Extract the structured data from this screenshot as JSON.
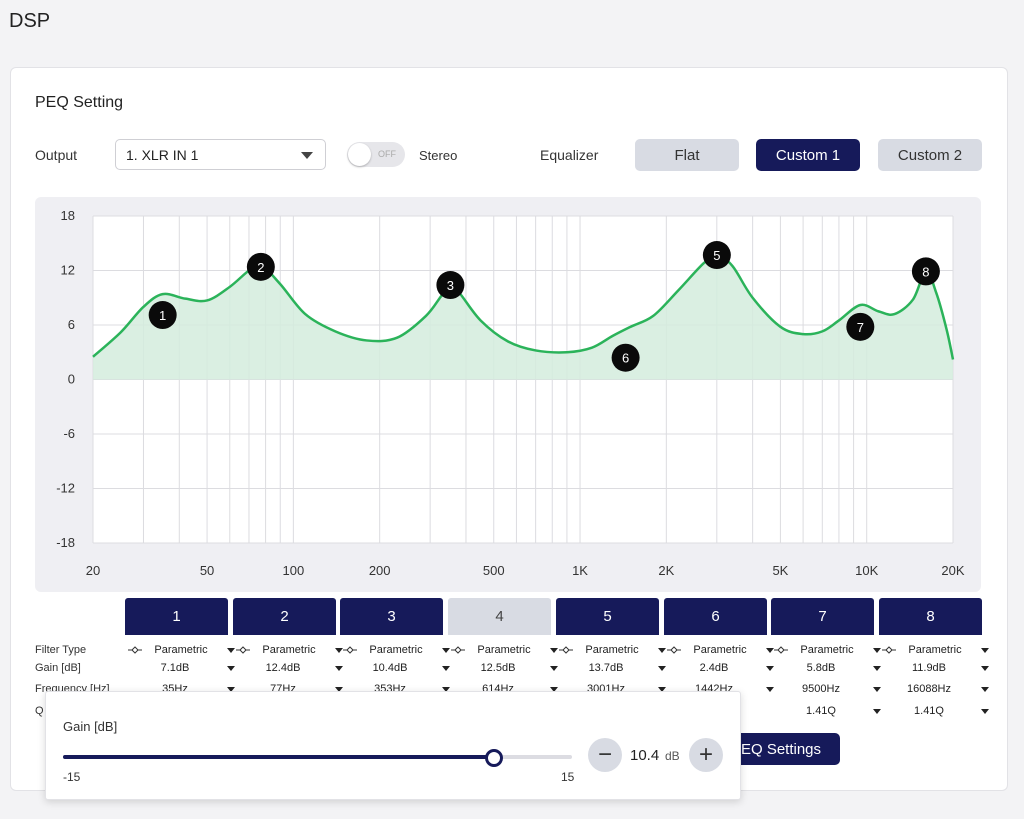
{
  "app_title": "DSP",
  "section_title": "PEQ Setting",
  "output": {
    "label": "Output",
    "value": "1. XLR IN 1"
  },
  "stereo": {
    "state_text": "OFF",
    "label": "Stereo"
  },
  "equalizer": {
    "label": "Equalizer",
    "presets": [
      {
        "label": "Flat",
        "active": false
      },
      {
        "label": "Custom 1",
        "active": true
      },
      {
        "label": "Custom 2",
        "active": false
      }
    ]
  },
  "colors": {
    "accent": "#161a5a",
    "curve": "#2bb35a",
    "curve_fill": "#d4ecdd",
    "marker": "#0a0a0a"
  },
  "chart_data": {
    "type": "line",
    "title": "",
    "xscale": "log",
    "xlim": [
      20,
      20000
    ],
    "ylim": [
      -18,
      18
    ],
    "y_ticks": [
      18,
      12,
      6,
      0,
      -6,
      -12,
      -18
    ],
    "x_ticks": [
      {
        "v": 20,
        "label": "20"
      },
      {
        "v": 50,
        "label": "50"
      },
      {
        "v": 100,
        "label": "100"
      },
      {
        "v": 200,
        "label": "200"
      },
      {
        "v": 500,
        "label": "500"
      },
      {
        "v": 1000,
        "label": "1K"
      },
      {
        "v": 2000,
        "label": "2K"
      },
      {
        "v": 5000,
        "label": "5K"
      },
      {
        "v": 10000,
        "label": "10K"
      },
      {
        "v": 20000,
        "label": "20K"
      }
    ],
    "grid": true,
    "curve": [
      [
        20,
        2.5
      ],
      [
        25,
        5.2
      ],
      [
        30,
        8.0
      ],
      [
        35,
        9.4
      ],
      [
        42,
        8.9
      ],
      [
        50,
        8.7
      ],
      [
        60,
        10.2
      ],
      [
        70,
        12.0
      ],
      [
        77,
        12.6
      ],
      [
        90,
        10.5
      ],
      [
        110,
        7.2
      ],
      [
        140,
        5.3
      ],
      [
        180,
        4.3
      ],
      [
        230,
        4.6
      ],
      [
        290,
        7.0
      ],
      [
        330,
        9.3
      ],
      [
        353,
        10.2
      ],
      [
        380,
        9.5
      ],
      [
        450,
        6.5
      ],
      [
        560,
        4.2
      ],
      [
        700,
        3.2
      ],
      [
        900,
        3.0
      ],
      [
        1100,
        3.5
      ],
      [
        1300,
        4.8
      ],
      [
        1500,
        5.8
      ],
      [
        1800,
        7.0
      ],
      [
        2200,
        9.8
      ],
      [
        2700,
        12.8
      ],
      [
        3001,
        13.7
      ],
      [
        3400,
        12.5
      ],
      [
        4000,
        9.0
      ],
      [
        5000,
        5.8
      ],
      [
        6000,
        5.0
      ],
      [
        7000,
        5.3
      ],
      [
        8000,
        6.5
      ],
      [
        9500,
        8.2
      ],
      [
        11000,
        7.5
      ],
      [
        12500,
        7.2
      ],
      [
        14500,
        8.8
      ],
      [
        16088,
        11.9
      ],
      [
        17500,
        9.5
      ],
      [
        19000,
        5.5
      ],
      [
        20000,
        2.2
      ]
    ],
    "markers": [
      {
        "label": "1",
        "x": 35,
        "y": 7.1
      },
      {
        "label": "2",
        "x": 77,
        "y": 12.4
      },
      {
        "label": "3",
        "x": 353,
        "y": 10.4
      },
      {
        "label": "5",
        "x": 3001,
        "y": 13.7
      },
      {
        "label": "6",
        "x": 1442,
        "y": 2.4
      },
      {
        "label": "7",
        "x": 9500,
        "y": 5.8
      },
      {
        "label": "8",
        "x": 16088,
        "y": 11.9
      }
    ]
  },
  "bands": {
    "row_labels": [
      "Filter Type",
      "Gain [dB]",
      "Frequency [Hz]",
      "Q"
    ],
    "tabs": [
      {
        "label": "1",
        "state": "on"
      },
      {
        "label": "2",
        "state": "on"
      },
      {
        "label": "3",
        "state": "on"
      },
      {
        "label": "4",
        "state": "sel"
      },
      {
        "label": "5",
        "state": "on"
      },
      {
        "label": "6",
        "state": "on"
      },
      {
        "label": "7",
        "state": "on"
      },
      {
        "label": "8",
        "state": "on"
      }
    ],
    "filter_type": [
      "Parametric",
      "Parametric",
      "Parametric",
      "Parametric",
      "Parametric",
      "Parametric",
      "Parametric",
      "Parametric"
    ],
    "gain": [
      "7.1dB",
      "12.4dB",
      "10.4dB",
      "12.5dB",
      "13.7dB",
      "2.4dB",
      "5.8dB",
      "11.9dB"
    ],
    "frequency": [
      "35Hz",
      "77Hz",
      "353Hz",
      "614Hz",
      "3001Hz",
      "1442Hz",
      "9500Hz",
      "16088Hz"
    ],
    "q": [
      "",
      "",
      "",
      "",
      "",
      "",
      "1.41Q",
      "1.41Q"
    ]
  },
  "peq_settings_label": "PEQ Settings",
  "gain_popup": {
    "title": "Gain [dB]",
    "min_label": "-15",
    "max_label": "15",
    "min": -15,
    "max": 15,
    "value": 10.4,
    "value_text": "10.4",
    "unit": "dB",
    "minus_symbol": "−",
    "plus_symbol": "+"
  }
}
